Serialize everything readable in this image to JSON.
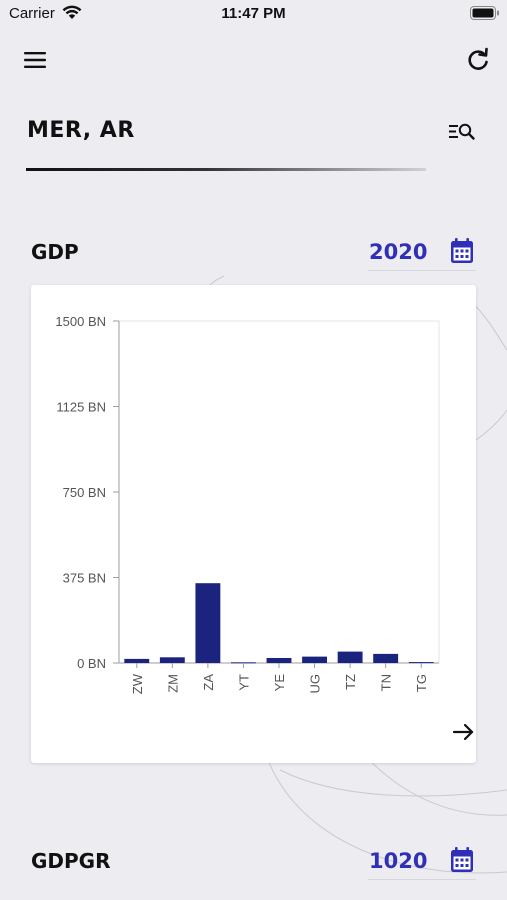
{
  "status_bar": {
    "carrier": "Carrier",
    "time": "11:47 PM"
  },
  "header": {
    "title": "MER, AR"
  },
  "icons": {
    "menu": "hamburger-menu-icon",
    "refresh": "refresh-icon",
    "filter": "search-filter-icon",
    "calendar": "calendar-icon",
    "next": "arrow-right-icon"
  },
  "sections": [
    {
      "label": "GDP",
      "year": "2020"
    },
    {
      "label": "GDPGR",
      "year": "1020"
    }
  ],
  "colors": {
    "accent": "#2f2fb8",
    "bar": "#1a237e",
    "background": "#ececf1"
  },
  "chart_data": {
    "type": "bar",
    "categories": [
      "ZW",
      "ZM",
      "ZA",
      "YT",
      "YE",
      "UG",
      "TZ",
      "TN",
      "TG"
    ],
    "values": [
      18,
      25,
      350,
      3,
      22,
      28,
      50,
      40,
      4
    ],
    "value_unit": "BN",
    "yticks": [
      "0 BN",
      "375 BN",
      "750 BN",
      "1125 BN",
      "1500 BN"
    ],
    "ylim": [
      0,
      1500
    ],
    "xlabel": "",
    "ylabel": "",
    "title": "",
    "grid": false
  }
}
